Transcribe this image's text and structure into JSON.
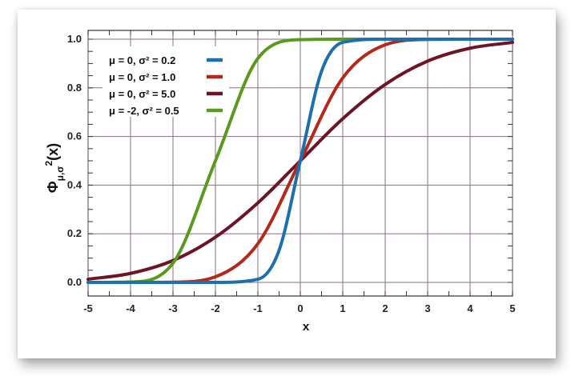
{
  "chart_data": {
    "type": "line",
    "xlabel": "x",
    "ylabel": {
      "main": "Φ",
      "sub": "μ,σ",
      "sup": "2",
      "tail": "(x)"
    },
    "xlim": [
      -5,
      5
    ],
    "ylim": [
      0,
      1
    ],
    "x_ticks": [
      "-5",
      "-4",
      "-3",
      "-2",
      "-1",
      "0",
      "1",
      "2",
      "3",
      "4",
      "5"
    ],
    "y_ticks": [
      "0.0",
      "0.2",
      "0.4",
      "0.6",
      "0.8",
      "1.0"
    ],
    "grid": true,
    "legend_position": "top-left",
    "series": [
      {
        "name": "μ = 0, σ² = 0.2",
        "mu": 0,
        "var": 0.2,
        "color": "#1e6fae",
        "x": [
          -5,
          -4,
          -3,
          -2,
          -1,
          -0.5,
          0,
          0.5,
          1,
          2,
          3,
          4,
          5
        ],
        "values": [
          0.0,
          0.0,
          0.0,
          0.0,
          0.013,
          0.132,
          0.5,
          0.868,
          0.987,
          1.0,
          1.0,
          1.0,
          1.0
        ]
      },
      {
        "name": "μ = 0, σ² = 1.0",
        "mu": 0,
        "var": 1.0,
        "color": "#b22a1c",
        "x": [
          -5,
          -4,
          -3,
          -2,
          -1,
          0,
          1,
          2,
          3,
          4,
          5
        ],
        "values": [
          0.0,
          0.0,
          0.001,
          0.023,
          0.159,
          0.5,
          0.841,
          0.977,
          0.999,
          1.0,
          1.0
        ]
      },
      {
        "name": "μ = 0, σ² = 5.0",
        "mu": 0,
        "var": 5.0,
        "color": "#6e1424",
        "x": [
          -5,
          -4,
          -3,
          -2,
          -1,
          0,
          1,
          2,
          3,
          4,
          5
        ],
        "values": [
          0.013,
          0.037,
          0.09,
          0.186,
          0.327,
          0.5,
          0.673,
          0.814,
          0.91,
          0.963,
          0.987
        ]
      },
      {
        "name": "μ = -2, σ² = 0.5",
        "mu": -2,
        "var": 0.5,
        "color": "#5a9a1e",
        "x": [
          -5,
          -4,
          -3,
          -2,
          -1,
          0,
          1,
          2,
          3,
          4,
          5
        ],
        "values": [
          0.0,
          0.002,
          0.079,
          0.5,
          0.921,
          0.998,
          1.0,
          1.0,
          1.0,
          1.0,
          1.0
        ]
      }
    ]
  }
}
